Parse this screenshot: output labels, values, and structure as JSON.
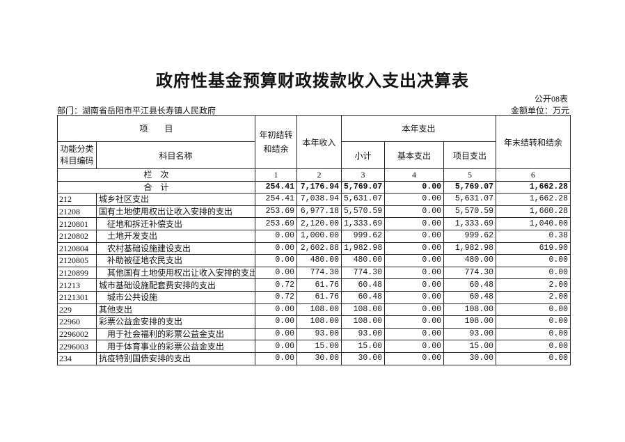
{
  "title": "政府性基金预算财政拨款收入支出决算表",
  "form_no": "公开08表",
  "department": "部门：湖南省岳阳市平江县长寿镇人民政府",
  "unit": "金额单位：万元",
  "headers": {
    "item": "项　　目",
    "code": "功能分类科目编码",
    "name": "科目名称",
    "begin_balance": "年初结转和结余",
    "income": "本年收入",
    "expense": "本年支出",
    "subtotal": "小计",
    "basic": "基本支出",
    "project": "项目支出",
    "end_balance": "年末结转和结余",
    "col_index_label": "栏　次",
    "col_index": [
      "1",
      "2",
      "3",
      "4",
      "5",
      "6"
    ]
  },
  "total": {
    "label": "合　计",
    "values": [
      "254.41",
      "7,176.94",
      "5,769.07",
      "0.00",
      "5,769.07",
      "1,662.28"
    ]
  },
  "rows": [
    {
      "code": "212",
      "name": "城乡社区支出",
      "indent": false,
      "values": [
        "254.41",
        "7,038.94",
        "5,631.07",
        "0.00",
        "5,631.07",
        "1,662.28"
      ]
    },
    {
      "code": "21208",
      "name": "国有土地使用权出让收入安排的支出",
      "indent": false,
      "values": [
        "253.69",
        "6,977.18",
        "5,570.59",
        "0.00",
        "5,570.59",
        "1,660.28"
      ]
    },
    {
      "code": "2120801",
      "name": "征地和拆迁补偿支出",
      "indent": true,
      "values": [
        "253.69",
        "2,120.00",
        "1,333.69",
        "0.00",
        "1,333.69",
        "1,040.00"
      ]
    },
    {
      "code": "2120802",
      "name": "土地开发支出",
      "indent": true,
      "values": [
        "0.00",
        "1,000.00",
        "999.62",
        "0.00",
        "999.62",
        "0.38"
      ]
    },
    {
      "code": "2120804",
      "name": "农村基础设施建设支出",
      "indent": true,
      "values": [
        "0.00",
        "2,602.88",
        "1,982.98",
        "0.00",
        "1,982.98",
        "619.90"
      ]
    },
    {
      "code": "2120805",
      "name": "补助被征地农民支出",
      "indent": true,
      "values": [
        "0.00",
        "480.00",
        "480.00",
        "0.00",
        "480.00",
        "0.00"
      ]
    },
    {
      "code": "2120899",
      "name": "其他国有土地使用权出让收入安排的支出",
      "indent": true,
      "values": [
        "0.00",
        "774.30",
        "774.30",
        "0.00",
        "774.30",
        "0.00"
      ]
    },
    {
      "code": "21213",
      "name": "城市基础设施配套费安排的支出",
      "indent": false,
      "values": [
        "0.72",
        "61.76",
        "60.48",
        "0.00",
        "60.48",
        "2.00"
      ]
    },
    {
      "code": "2121301",
      "name": "城市公共设施",
      "indent": true,
      "values": [
        "0.72",
        "61.76",
        "60.48",
        "0.00",
        "60.48",
        "2.00"
      ]
    },
    {
      "code": "229",
      "name": "其他支出",
      "indent": false,
      "values": [
        "0.00",
        "108.00",
        "108.00",
        "0.00",
        "108.00",
        "0.00"
      ]
    },
    {
      "code": "22960",
      "name": "彩票公益金安排的支出",
      "indent": false,
      "values": [
        "0.00",
        "108.00",
        "108.00",
        "0.00",
        "108.00",
        "0.00"
      ]
    },
    {
      "code": "2296002",
      "name": "用于社会福利的彩票公益金支出",
      "indent": true,
      "values": [
        "0.00",
        "93.00",
        "93.00",
        "0.00",
        "93.00",
        "0.00"
      ]
    },
    {
      "code": "2296003",
      "name": "用于体育事业的彩票公益金支出",
      "indent": true,
      "values": [
        "0.00",
        "15.00",
        "15.00",
        "0.00",
        "15.00",
        "0.00"
      ]
    },
    {
      "code": "234",
      "name": "抗疫特别国债安排的支出",
      "indent": false,
      "values": [
        "0.00",
        "30.00",
        "30.00",
        "0.00",
        "30.00",
        "0.00"
      ]
    }
  ]
}
